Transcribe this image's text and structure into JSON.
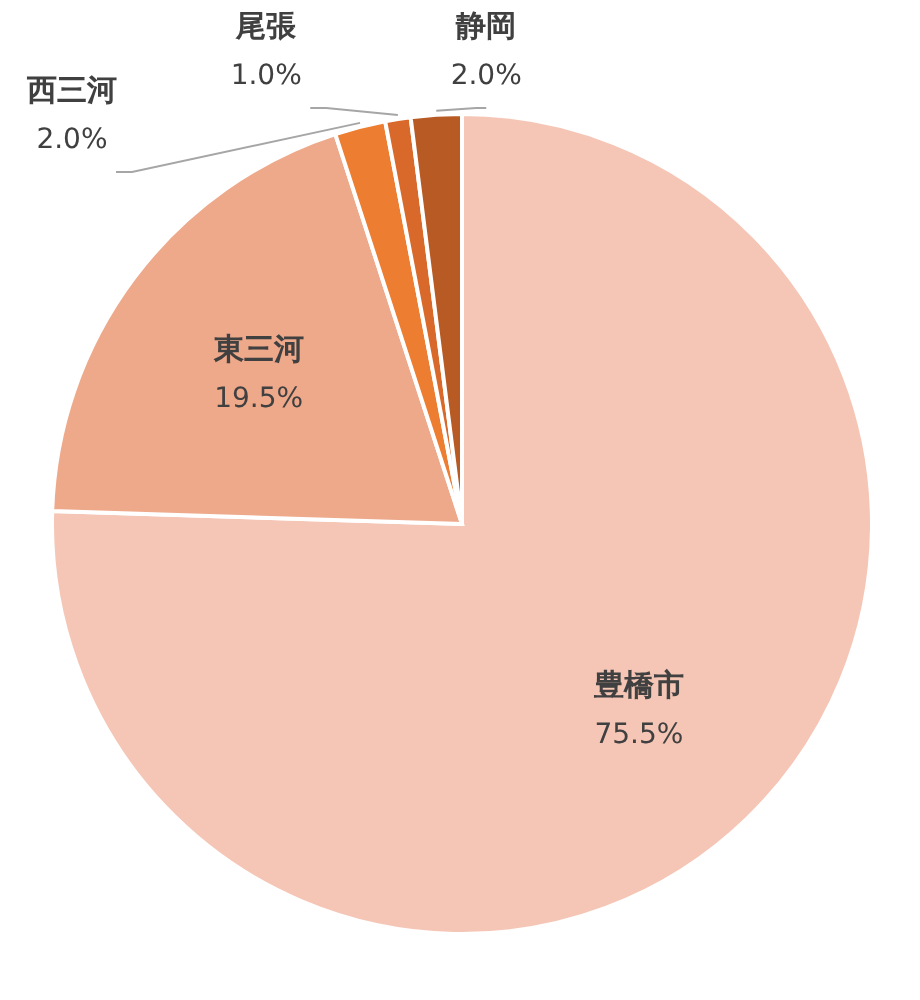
{
  "chart_data": {
    "type": "pie",
    "categories": [
      "豊橋市",
      "東三河",
      "西三河",
      "尾張",
      "静岡"
    ],
    "values": [
      75.5,
      19.5,
      2.0,
      1.0,
      2.0
    ],
    "value_labels": [
      "75.5%",
      "19.5%",
      "2.0%",
      "1.0%",
      "2.0%"
    ],
    "colors": [
      "#f5c6b6",
      "#eea98b",
      "#ed7d31",
      "#d9692a",
      "#b85a24"
    ]
  }
}
